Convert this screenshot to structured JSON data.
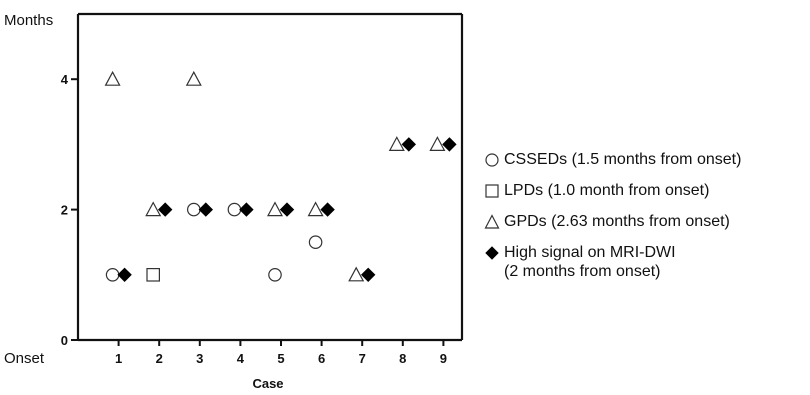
{
  "chart_data": {
    "type": "scatter",
    "title": "",
    "xlabel": "Case",
    "ylabel": "Months",
    "x_origin_label": "Onset",
    "categories": [
      "1",
      "2",
      "3",
      "4",
      "5",
      "6",
      "7",
      "8",
      "9"
    ],
    "yticks": [
      "0",
      "2",
      "4"
    ],
    "ylim": [
      0,
      5
    ],
    "xlim": [
      0,
      9.5
    ],
    "grid": false,
    "legend_position": "right",
    "series": [
      {
        "name": "CSSEDs (1.5 months from onset)",
        "marker": "circle-open",
        "points": [
          {
            "x": 1,
            "y": 1
          },
          {
            "x": 3,
            "y": 2
          },
          {
            "x": 4,
            "y": 2
          },
          {
            "x": 5,
            "y": 1
          },
          {
            "x": 6,
            "y": 1.5
          }
        ]
      },
      {
        "name": "LPDs (1.0 month from onset)",
        "marker": "square-open",
        "points": [
          {
            "x": 2,
            "y": 1
          }
        ]
      },
      {
        "name": "GPDs (2.63 months from onset)",
        "marker": "triangle-open",
        "points": [
          {
            "x": 1,
            "y": 4
          },
          {
            "x": 2,
            "y": 2
          },
          {
            "x": 3,
            "y": 4
          },
          {
            "x": 5,
            "y": 2
          },
          {
            "x": 6,
            "y": 2
          },
          {
            "x": 7,
            "y": 1
          },
          {
            "x": 8,
            "y": 3
          },
          {
            "x": 9,
            "y": 3
          }
        ]
      },
      {
        "name": "High signal on MRI-DWI\n(2 months from onset)",
        "marker": "diamond-filled",
        "points": [
          {
            "x": 1,
            "y": 1
          },
          {
            "x": 2,
            "y": 2
          },
          {
            "x": 3,
            "y": 2
          },
          {
            "x": 4,
            "y": 2
          },
          {
            "x": 5,
            "y": 2
          },
          {
            "x": 6,
            "y": 2
          },
          {
            "x": 7,
            "y": 1
          },
          {
            "x": 8,
            "y": 3
          },
          {
            "x": 9,
            "y": 3
          }
        ]
      }
    ]
  },
  "colors": {
    "axis": "#111111",
    "marker_stroke": "#333333",
    "marker_fill": "#000000"
  }
}
